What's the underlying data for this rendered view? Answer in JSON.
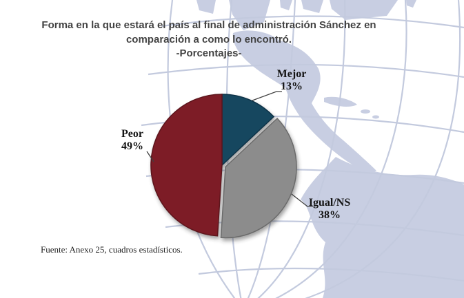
{
  "title": {
    "line1": "Forma en la que estará el país al final de administración Sánchez en",
    "line2": "comparación a como lo encontró.",
    "line3": "-Porcentajes-"
  },
  "source_note": "Fuente: Anexo 25, cuadros estadísticos.",
  "watermark": {
    "name": "globe-world-map",
    "land_color": "#c8cee2",
    "line_color": "#c3cade"
  },
  "chart_data": {
    "type": "pie",
    "title": "Forma en la que estará el país al final de administración Sánchez en comparación a como lo encontró. -Porcentajes-",
    "categories": [
      "Mejor",
      "Igual/NS",
      "Peor"
    ],
    "values": [
      13,
      38,
      49
    ],
    "unit": "%",
    "start_angle_deg": 0,
    "direction": "clockwise",
    "legend": "none",
    "labels_style": "callout-with-leader-line",
    "slices": [
      {
        "label": "Mejor",
        "value": 13,
        "pct_label": "13%",
        "color": "#16465e",
        "edge": "#0f3347",
        "explode": false
      },
      {
        "label": "Igual/NS",
        "value": 38,
        "pct_label": "38%",
        "color": "#8c8c8c",
        "edge": "#6b6b6b",
        "explode": true
      },
      {
        "label": "Peor",
        "value": 49,
        "pct_label": "49%",
        "color": "#7d1a25",
        "edge": "#5c131c",
        "explode": false
      }
    ]
  }
}
